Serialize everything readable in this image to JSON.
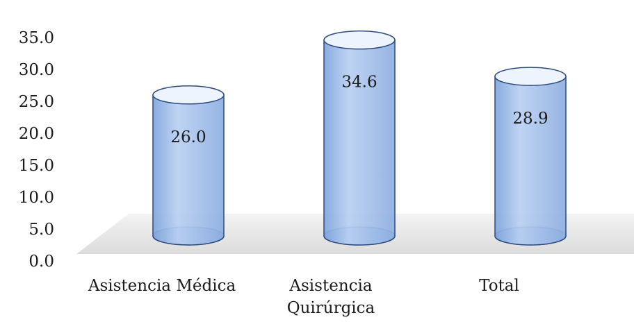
{
  "chart_data": {
    "type": "bar",
    "style": "3d-cylinder",
    "title": "",
    "xlabel": "",
    "ylabel": "",
    "categories": [
      [
        "Asistencia Médica"
      ],
      [
        "Asistencia",
        "Quirúrgica"
      ],
      [
        "Total"
      ]
    ],
    "series": [
      {
        "values": [
          26.0,
          34.6,
          28.9
        ]
      }
    ],
    "data_labels": [
      "26.0",
      "34.6",
      "28.9"
    ],
    "y_ticks": [
      "0.0",
      "5.0",
      "10.0",
      "15.0",
      "20.0",
      "25.0",
      "30.0",
      "35.0"
    ],
    "ylim": [
      0,
      35
    ],
    "grid": false,
    "legend": "none",
    "colors": {
      "bar_fill": "#9dbcec",
      "bar_outline": "#2c4a7e",
      "floor": "#e6e6e6"
    }
  }
}
